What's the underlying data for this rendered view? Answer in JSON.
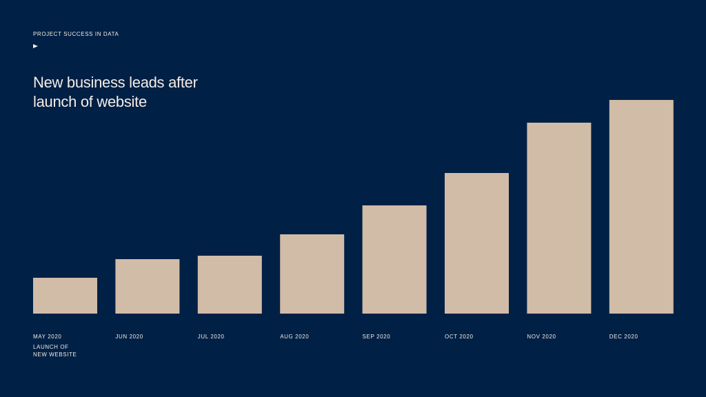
{
  "chart_data": {
    "type": "bar",
    "eyebrow": "PROJECT SUCCESS IN DATA",
    "title": "New business leads after launch of website",
    "categories": [
      "MAY 2020",
      "JUN 2020",
      "JUL 2020",
      "AUG 2020",
      "SEP 2020",
      "OCT 2020",
      "NOV 2020",
      "DEC 2020"
    ],
    "values": [
      52,
      79,
      84,
      115,
      157,
      204,
      277,
      310
    ],
    "color": "#d1bca8",
    "annotation": [
      "LAUNCH OF",
      "NEW WEBSITE"
    ]
  }
}
